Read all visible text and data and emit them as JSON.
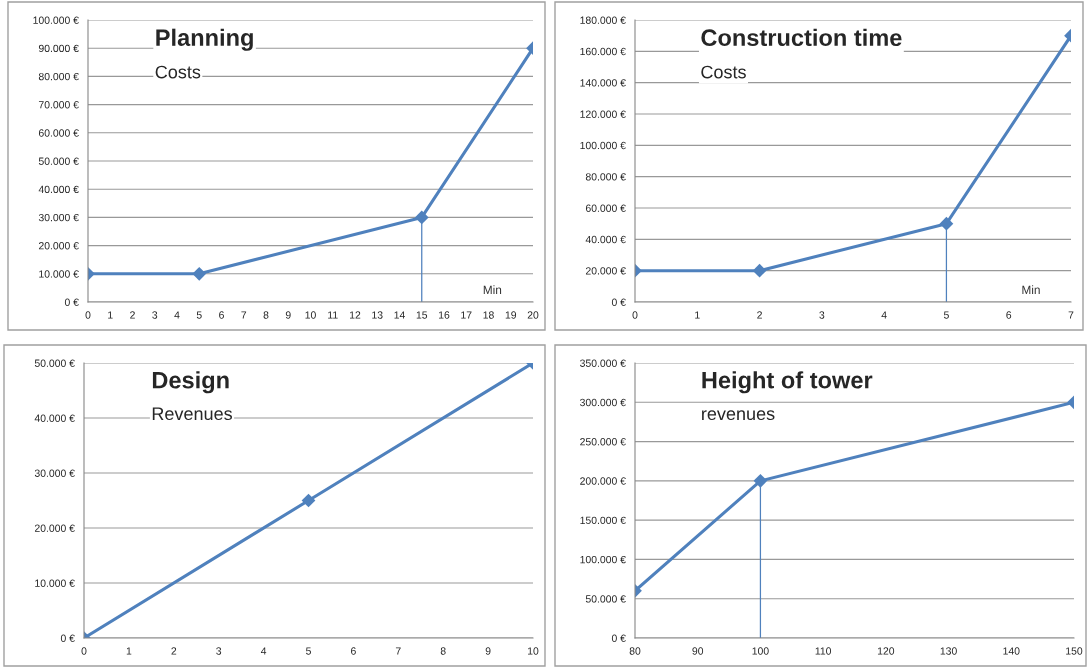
{
  "chart_data": [
    {
      "type": "line",
      "title": "Planning",
      "subtitle": "Costs",
      "x": [
        0,
        5,
        15,
        20
      ],
      "marker": "diamond",
      "grid": "y",
      "series": [
        {
          "color": "#4f81bd",
          "values": [
            10000,
            10000,
            30000,
            90000
          ]
        },
        {
          "type": "line",
          "x": [
            15,
            15
          ],
          "color": "#4f81bd",
          "marker": "none",
          "values": [
            0,
            30000
          ]
        }
      ],
      "xlim": [
        0,
        20
      ],
      "xticks": [
        0,
        1,
        2,
        3,
        4,
        5,
        6,
        7,
        8,
        9,
        10,
        11,
        12,
        13,
        14,
        15,
        16,
        17,
        18,
        19,
        20
      ],
      "ylim": [
        0,
        100000
      ],
      "yticks": [
        {
          "value": 0,
          "label": "0 €"
        },
        {
          "value": 10000,
          "label": "10.000 €"
        },
        {
          "value": 20000,
          "label": "20.000 €"
        },
        {
          "value": 30000,
          "label": "30.000 €"
        },
        {
          "value": 40000,
          "label": "40.000 €"
        },
        {
          "value": 50000,
          "label": "50.000 €"
        },
        {
          "value": 60000,
          "label": "60.000 €"
        },
        {
          "value": 70000,
          "label": "70.000 €"
        },
        {
          "value": 80000,
          "label": "80.000 €"
        },
        {
          "value": 90000,
          "label": "90.000 €"
        },
        {
          "value": 100000,
          "label": "100.000 €"
        }
      ],
      "annotations": [
        "Min"
      ]
    },
    {
      "type": "line",
      "title": "Construction time",
      "subtitle": "Costs",
      "x": [
        0,
        2,
        5,
        7
      ],
      "marker": "diamond",
      "grid": "y",
      "series": [
        {
          "color": "#4f81bd",
          "values": [
            20000,
            20000,
            50000,
            170000
          ]
        },
        {
          "type": "line",
          "x": [
            5,
            5
          ],
          "color": "#4f81bd",
          "marker": "none",
          "values": [
            0,
            50000
          ]
        }
      ],
      "xlim": [
        0,
        7
      ],
      "xticks": [
        0,
        1,
        2,
        3,
        4,
        5,
        6,
        7
      ],
      "ylim": [
        0,
        180000
      ],
      "yticks": [
        {
          "value": 0,
          "label": "0 €"
        },
        {
          "value": 20000,
          "label": "20.000 €"
        },
        {
          "value": 40000,
          "label": "40.000 €"
        },
        {
          "value": 60000,
          "label": "60.000 €"
        },
        {
          "value": 80000,
          "label": "80.000 €"
        },
        {
          "value": 100000,
          "label": "100.000 €"
        },
        {
          "value": 120000,
          "label": "120.000 €"
        },
        {
          "value": 140000,
          "label": "140.000 €"
        },
        {
          "value": 160000,
          "label": "160.000 €"
        },
        {
          "value": 180000,
          "label": "180.000 €"
        }
      ],
      "annotations": [
        "Min"
      ]
    },
    {
      "type": "line",
      "title": "Design",
      "subtitle": "Revenues",
      "x": [
        0,
        5,
        10
      ],
      "marker": "diamond",
      "grid": "y",
      "series": [
        {
          "color": "#4f81bd",
          "values": [
            0,
            25000,
            50000
          ]
        }
      ],
      "xlim": [
        0,
        10
      ],
      "xticks": [
        0,
        1,
        2,
        3,
        4,
        5,
        6,
        7,
        8,
        9,
        10
      ],
      "ylim": [
        0,
        50000
      ],
      "yticks": [
        {
          "value": 0,
          "label": "0 €"
        },
        {
          "value": 10000,
          "label": "10.000 €"
        },
        {
          "value": 20000,
          "label": "20.000 €"
        },
        {
          "value": 30000,
          "label": "30.000 €"
        },
        {
          "value": 40000,
          "label": "40.000 €"
        },
        {
          "value": 50000,
          "label": "50.000 €"
        }
      ]
    },
    {
      "type": "line",
      "title": "Height of tower",
      "subtitle": "revenues",
      "x": [
        80,
        100,
        150
      ],
      "marker": "diamond",
      "grid": "y",
      "series": [
        {
          "color": "#4f81bd",
          "values": [
            60000,
            200000,
            300000
          ]
        },
        {
          "type": "line",
          "x": [
            100,
            100
          ],
          "color": "#4f81bd",
          "marker": "none",
          "values": [
            0,
            200000
          ]
        }
      ],
      "xlim": [
        80,
        150
      ],
      "xticks": [
        80,
        90,
        100,
        110,
        120,
        130,
        140,
        150
      ],
      "ylim": [
        0,
        350000
      ],
      "yticks": [
        {
          "value": 0,
          "label": "0 €"
        },
        {
          "value": 50000,
          "label": "50.000 €"
        },
        {
          "value": 100000,
          "label": "100.000 €"
        },
        {
          "value": 150000,
          "label": "150.000 €"
        },
        {
          "value": 200000,
          "label": "200.000 €"
        },
        {
          "value": 250000,
          "label": "250.000 €"
        },
        {
          "value": 300000,
          "label": "300.000 €"
        },
        {
          "value": 350000,
          "label": "350.000 €"
        }
      ]
    }
  ]
}
